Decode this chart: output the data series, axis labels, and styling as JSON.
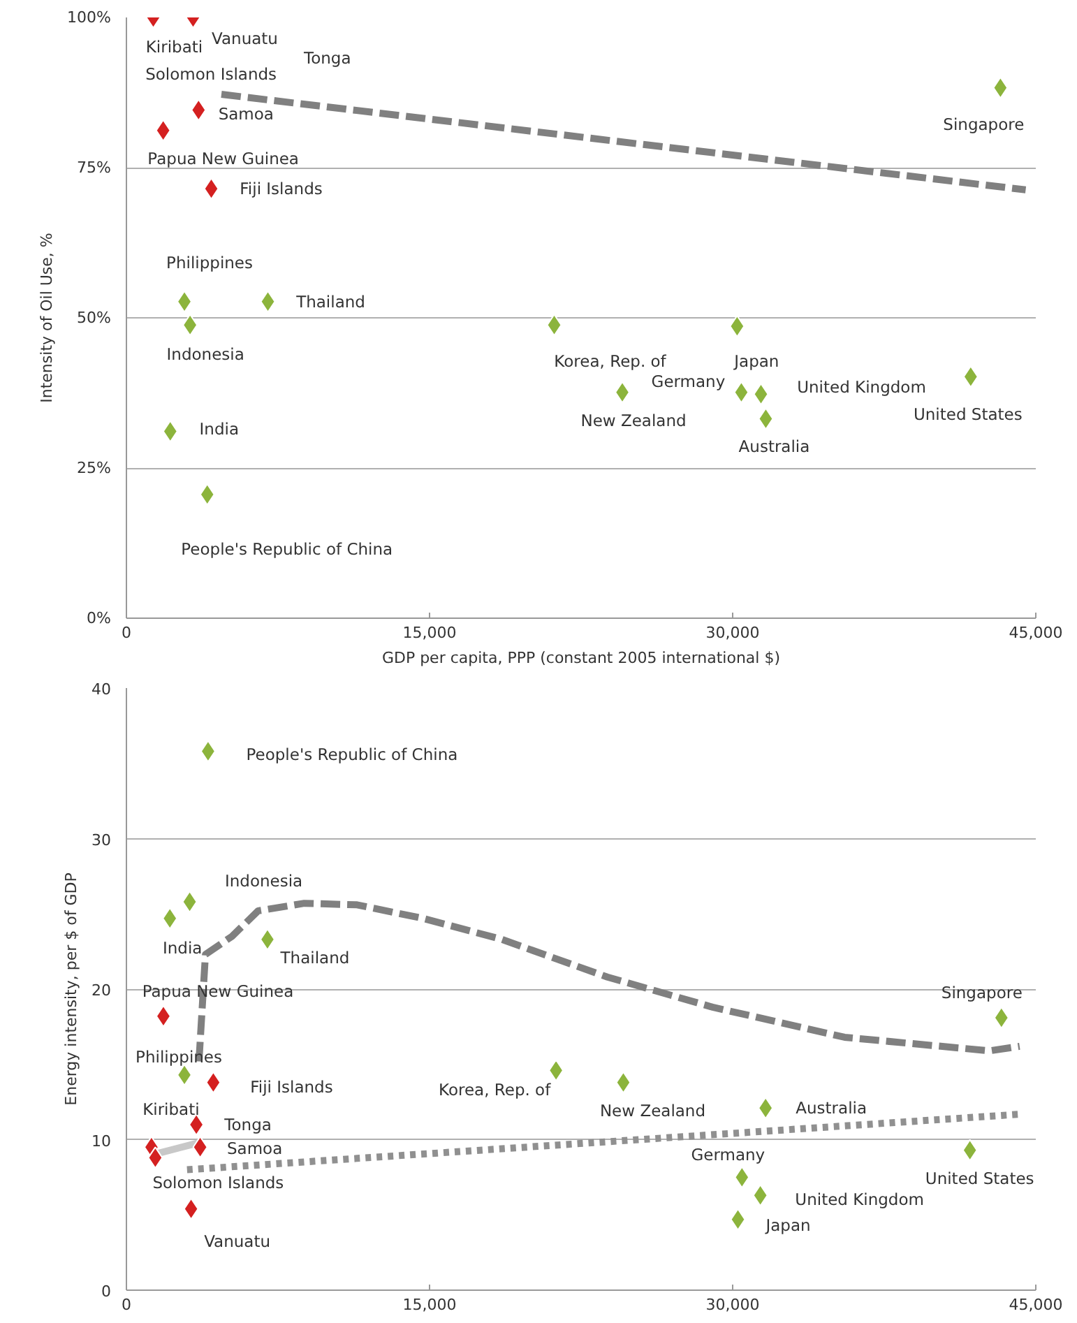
{
  "chart_data": [
    {
      "type": "scatter",
      "xlabel": "GDP per capita, PPP (constant 2005 international $)",
      "ylabel": "Intensity of Oil Use, %",
      "xlim": [
        0,
        45000
      ],
      "ylim": [
        0,
        100
      ],
      "xticks": [
        {
          "value": 0,
          "label": "0"
        },
        {
          "value": 15000,
          "label": "15,000"
        },
        {
          "value": 30000,
          "label": "30,000"
        },
        {
          "value": 45000,
          "label": "45,000"
        }
      ],
      "yticks": [
        {
          "value": 0,
          "label": "0%"
        },
        {
          "value": 25,
          "label": "25%"
        },
        {
          "value": 50,
          "label": "50%"
        },
        {
          "value": 75,
          "label": "75%"
        },
        {
          "value": 100,
          "label": "100%"
        }
      ],
      "grid": "y",
      "marker": "diamond",
      "series": [
        {
          "type": "line",
          "color": "#808080",
          "line_style": "dashed",
          "marker": "none",
          "x": [
            4700,
            44500
          ],
          "values": [
            87.2,
            71.3
          ]
        },
        {
          "color": "#d42020",
          "x": [
            1330,
            3300,
            3570,
            1820,
            4200
          ],
          "values": [
            100,
            100,
            84.6,
            81.2,
            71.5
          ]
        },
        {
          "color": "#8cb43c",
          "x": [
            2870,
            3150,
            7000,
            2170,
            4000,
            21170,
            24540,
            30220,
            30430,
            31400,
            31640,
            41780,
            43250
          ],
          "values": [
            52.7,
            48.8,
            52.7,
            31.1,
            20.6,
            48.8,
            37.6,
            48.6,
            37.6,
            37.3,
            33.2,
            40.2,
            88.3
          ]
        }
      ],
      "annotations": [
        {
          "text": "Kiribati",
          "x": 1330,
          "y": 100
        },
        {
          "text": "Vanuatu",
          "x": 3300,
          "y": 100
        },
        "Solomon Islands",
        "Tonga",
        {
          "text": "Samoa",
          "x": 3570,
          "y": 84.6
        },
        {
          "text": "Papua New Guinea",
          "x": 1820,
          "y": 81.2
        },
        {
          "text": "Fiji Islands",
          "x": 4200,
          "y": 71.5
        },
        {
          "text": "Philippines",
          "x": 2870,
          "y": 52.7
        },
        {
          "text": "Thailand",
          "x": 7000,
          "y": 52.7
        },
        {
          "text": "Indonesia",
          "x": 3150,
          "y": 48.8
        },
        {
          "text": "India",
          "x": 2170,
          "y": 31.1
        },
        {
          "text": "People's Republic of China",
          "x": 4000,
          "y": 20.6
        },
        {
          "text": "Korea, Rep. of",
          "x": 21170,
          "y": 48.8
        },
        {
          "text": "New Zealand",
          "x": 24540,
          "y": 37.6
        },
        {
          "text": "Germany",
          "x": 30430,
          "y": 37.6
        },
        {
          "text": "Japan",
          "x": 30220,
          "y": 48.6
        },
        {
          "text": "United Kingdom",
          "x": 31400,
          "y": 37.3
        },
        {
          "text": "Australia",
          "x": 31640,
          "y": 33.2
        },
        {
          "text": "United States",
          "x": 41780,
          "y": 40.2
        },
        {
          "text": "Singapore",
          "x": 43250,
          "y": 88.3
        }
      ]
    },
    {
      "type": "scatter",
      "ylabel": "Energy intensity, per $ of GDP",
      "xlim": [
        0,
        45000
      ],
      "ylim": [
        0,
        40
      ],
      "xticks": [
        {
          "value": 0,
          "label": "0"
        },
        {
          "value": 15000,
          "label": "15,000"
        },
        {
          "value": 30000,
          "label": "30,000"
        },
        {
          "value": 45000,
          "label": "45,000"
        }
      ],
      "yticks": [
        0,
        10,
        20,
        30,
        40
      ],
      "grid": "y",
      "marker": "diamond",
      "series": [
        {
          "type": "line",
          "color": "#808080",
          "line_style": "dashed",
          "marker": "none",
          "x": [
            3590,
            3910,
            5220,
            6520,
            8800,
            11410,
            14670,
            18580,
            23800,
            29010,
            35540,
            42710,
            44200
          ],
          "values": [
            15.2,
            22.3,
            23.5,
            25.2,
            25.7,
            25.6,
            24.7,
            23.3,
            20.8,
            18.8,
            16.8,
            15.9,
            16.2
          ]
        },
        {
          "type": "line",
          "color": "#909090",
          "line_style": "dotted",
          "marker": "none",
          "x": [
            3000,
            44340
          ],
          "values": [
            8.0,
            11.7
          ]
        },
        {
          "type": "line",
          "color": "#c8c8c8",
          "line_style": "solid",
          "marker": "none",
          "x": [
            1300,
            3590
          ],
          "values": [
            9.0,
            9.8
          ]
        },
        {
          "color": "#d42020",
          "x": [
            1240,
            1430,
            1830,
            4300,
            3460,
            3650,
            3200
          ],
          "values": [
            9.5,
            8.8,
            18.2,
            13.8,
            11.0,
            9.5,
            5.4
          ]
        },
        {
          "color": "#8cb43c",
          "x": [
            4040,
            2150,
            3130,
            6980,
            2870,
            21260,
            24590,
            31630,
            30460,
            31370,
            30260,
            41740,
            43300
          ],
          "values": [
            35.8,
            24.7,
            25.8,
            23.3,
            14.3,
            14.6,
            13.8,
            12.1,
            7.5,
            6.3,
            4.7,
            9.3,
            18.1
          ]
        }
      ],
      "annotations": [
        {
          "text": "People's Republic of China",
          "x": 4040,
          "y": 35.8
        },
        {
          "text": "Indonesia",
          "x": 3130,
          "y": 25.8
        },
        {
          "text": "India",
          "x": 2150,
          "y": 24.7
        },
        {
          "text": "Thailand",
          "x": 6980,
          "y": 23.3
        },
        {
          "text": "Papua New Guinea",
          "x": 1830,
          "y": 18.2
        },
        {
          "text": "Philippines",
          "x": 2870,
          "y": 14.3
        },
        {
          "text": "Fiji Islands",
          "x": 4300,
          "y": 13.8
        },
        {
          "text": "Kiribati",
          "x": 1240,
          "y": 9.5
        },
        {
          "text": "Tonga",
          "x": 3460,
          "y": 11.0
        },
        {
          "text": "Samoa",
          "x": 3650,
          "y": 9.5
        },
        {
          "text": "Solomon Islands",
          "x": 1430,
          "y": 8.8
        },
        {
          "text": "Vanuatu",
          "x": 3200,
          "y": 5.4
        },
        {
          "text": "Korea, Rep. of",
          "x": 21260,
          "y": 14.6
        },
        {
          "text": "New Zealand",
          "x": 24590,
          "y": 13.8
        },
        {
          "text": "Australia",
          "x": 31630,
          "y": 12.1
        },
        {
          "text": "Germany",
          "x": 30460,
          "y": 7.5
        },
        {
          "text": "United Kingdom",
          "x": 31370,
          "y": 6.3
        },
        {
          "text": "Japan",
          "x": 30260,
          "y": 4.7
        },
        {
          "text": "United States",
          "x": 41740,
          "y": 9.3
        },
        {
          "text": "Singapore",
          "x": 43300,
          "y": 18.1
        }
      ]
    }
  ]
}
